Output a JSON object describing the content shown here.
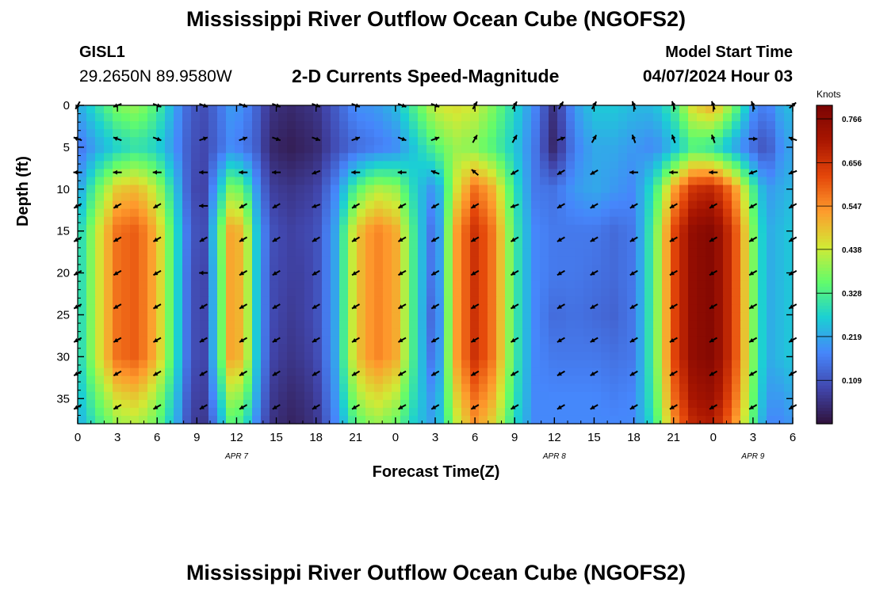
{
  "header": {
    "title": "Mississippi River Outflow Ocean Cube (NGOFS2)",
    "station_name": "GISL1",
    "station_coords": "29.2650N  89.9580W",
    "plot_title": "2-D Currents Speed-Magnitude",
    "model_start_label": "Model Start Time",
    "model_start_value": "04/07/2024 Hour 03"
  },
  "footer": {
    "title": "Mississippi River Outflow Ocean Cube (NGOFS2)"
  },
  "chart_data": {
    "type": "heatmap",
    "title": "2-D Currents Speed-Magnitude",
    "xlabel": "Forecast Time(Z)",
    "ylabel": "Depth (ft)",
    "x_unit": "hours since 04/07/2024 00Z",
    "xlim": [
      0,
      54
    ],
    "ylim": [
      0,
      38
    ],
    "y_inverted": true,
    "x_ticks": [
      0,
      3,
      6,
      9,
      12,
      15,
      18,
      21,
      24,
      27,
      30,
      33,
      36,
      39,
      42,
      45,
      48,
      51,
      54
    ],
    "x_tick_labels": [
      "0",
      "3",
      "6",
      "9",
      "12",
      "15",
      "18",
      "21",
      "0",
      "3",
      "6",
      "9",
      "12",
      "15",
      "18",
      "21",
      "0",
      "3",
      "6"
    ],
    "y_ticks": [
      0,
      5,
      10,
      15,
      20,
      25,
      30,
      35
    ],
    "y_tick_labels": [
      "0",
      "5",
      "10",
      "15",
      "20",
      "25",
      "30",
      "35"
    ],
    "date_labels": [
      {
        "x": 12,
        "label": "APR 7"
      },
      {
        "x": 36,
        "label": "APR 8"
      },
      {
        "x": 51,
        "label": "APR 9"
      }
    ],
    "colorbar": {
      "unit": "Knots",
      "range": [
        0,
        0.8
      ],
      "ticks": [
        0.109,
        0.219,
        0.328,
        0.438,
        0.547,
        0.656,
        0.766
      ],
      "tick_labels": [
        "0.109",
        "0.219",
        "0.328",
        "0.438",
        "0.547",
        "0.656",
        "0.766"
      ],
      "colors": [
        "#30123b",
        "#4146ac",
        "#4686fb",
        "#1bcfd4",
        "#62fc6b",
        "#d2e935",
        "#fe9b2d",
        "#e4460a",
        "#a91601",
        "#7a0403"
      ]
    },
    "speed_field": {
      "x": [
        0,
        1.5,
        3,
        4.5,
        6,
        7.5,
        8.5,
        9.5,
        10.5,
        11.5,
        12.5,
        13.5,
        14.5,
        16,
        17,
        18,
        19.5,
        21,
        22.5,
        24,
        25.5,
        27,
        28.5,
        30,
        31.5,
        33,
        34.5,
        36,
        37.5,
        39,
        40.5,
        42,
        43.5,
        45,
        46.5,
        48,
        49.5,
        51,
        52,
        53,
        54
      ],
      "depth": [
        0,
        5,
        10,
        15,
        20,
        25,
        30,
        35,
        38
      ],
      "values": [
        [
          0.22,
          0.3,
          0.38,
          0.4,
          0.33,
          0.2,
          0.12,
          0.1,
          0.14,
          0.2,
          0.19,
          0.13,
          0.06,
          0.04,
          0.05,
          0.06,
          0.12,
          0.19,
          0.2,
          0.24,
          0.34,
          0.44,
          0.46,
          0.44,
          0.37,
          0.28,
          0.18,
          0.05,
          0.2,
          0.26,
          0.26,
          0.24,
          0.24,
          0.32,
          0.47,
          0.52,
          0.38,
          0.2,
          0.16,
          0.22,
          0.25
        ],
        [
          0.15,
          0.22,
          0.27,
          0.3,
          0.27,
          0.18,
          0.11,
          0.09,
          0.13,
          0.18,
          0.16,
          0.12,
          0.04,
          0.02,
          0.03,
          0.04,
          0.1,
          0.14,
          0.16,
          0.18,
          0.26,
          0.34,
          0.4,
          0.38,
          0.33,
          0.26,
          0.16,
          0.03,
          0.17,
          0.22,
          0.22,
          0.2,
          0.18,
          0.24,
          0.33,
          0.3,
          0.22,
          0.14,
          0.1,
          0.18,
          0.22
        ],
        [
          0.2,
          0.36,
          0.48,
          0.5,
          0.42,
          0.24,
          0.1,
          0.08,
          0.22,
          0.38,
          0.36,
          0.2,
          0.08,
          0.06,
          0.07,
          0.08,
          0.18,
          0.34,
          0.42,
          0.4,
          0.27,
          0.18,
          0.44,
          0.58,
          0.5,
          0.3,
          0.16,
          0.15,
          0.2,
          0.22,
          0.2,
          0.18,
          0.3,
          0.52,
          0.66,
          0.68,
          0.56,
          0.33,
          0.2,
          0.22,
          0.24
        ],
        [
          0.26,
          0.44,
          0.58,
          0.6,
          0.5,
          0.28,
          0.12,
          0.09,
          0.3,
          0.52,
          0.5,
          0.26,
          0.11,
          0.08,
          0.09,
          0.1,
          0.22,
          0.48,
          0.56,
          0.52,
          0.3,
          0.12,
          0.52,
          0.66,
          0.56,
          0.32,
          0.18,
          0.16,
          0.16,
          0.16,
          0.14,
          0.16,
          0.34,
          0.62,
          0.76,
          0.78,
          0.64,
          0.38,
          0.22,
          0.24,
          0.26
        ],
        [
          0.26,
          0.44,
          0.58,
          0.6,
          0.5,
          0.28,
          0.11,
          0.08,
          0.28,
          0.52,
          0.5,
          0.26,
          0.1,
          0.08,
          0.08,
          0.1,
          0.22,
          0.48,
          0.56,
          0.52,
          0.3,
          0.12,
          0.52,
          0.66,
          0.56,
          0.32,
          0.18,
          0.16,
          0.16,
          0.15,
          0.14,
          0.16,
          0.34,
          0.62,
          0.76,
          0.78,
          0.64,
          0.38,
          0.22,
          0.24,
          0.26
        ],
        [
          0.26,
          0.44,
          0.58,
          0.6,
          0.5,
          0.28,
          0.11,
          0.08,
          0.28,
          0.52,
          0.5,
          0.26,
          0.1,
          0.07,
          0.08,
          0.1,
          0.22,
          0.48,
          0.56,
          0.52,
          0.3,
          0.1,
          0.52,
          0.66,
          0.56,
          0.32,
          0.18,
          0.14,
          0.15,
          0.14,
          0.13,
          0.16,
          0.34,
          0.62,
          0.76,
          0.78,
          0.64,
          0.38,
          0.22,
          0.24,
          0.26
        ],
        [
          0.26,
          0.44,
          0.58,
          0.6,
          0.5,
          0.28,
          0.11,
          0.08,
          0.28,
          0.52,
          0.5,
          0.26,
          0.09,
          0.06,
          0.07,
          0.09,
          0.22,
          0.48,
          0.56,
          0.52,
          0.3,
          0.12,
          0.52,
          0.66,
          0.56,
          0.32,
          0.18,
          0.16,
          0.16,
          0.16,
          0.15,
          0.16,
          0.34,
          0.62,
          0.76,
          0.78,
          0.64,
          0.38,
          0.22,
          0.24,
          0.26
        ],
        [
          0.24,
          0.36,
          0.46,
          0.48,
          0.4,
          0.24,
          0.09,
          0.07,
          0.22,
          0.4,
          0.38,
          0.22,
          0.07,
          0.04,
          0.05,
          0.07,
          0.2,
          0.4,
          0.46,
          0.42,
          0.28,
          0.18,
          0.46,
          0.58,
          0.5,
          0.3,
          0.18,
          0.18,
          0.18,
          0.18,
          0.17,
          0.18,
          0.32,
          0.58,
          0.72,
          0.74,
          0.6,
          0.36,
          0.2,
          0.2,
          0.22
        ],
        [
          0.22,
          0.32,
          0.4,
          0.42,
          0.36,
          0.22,
          0.08,
          0.06,
          0.18,
          0.34,
          0.32,
          0.18,
          0.06,
          0.03,
          0.04,
          0.06,
          0.18,
          0.34,
          0.4,
          0.36,
          0.26,
          0.2,
          0.42,
          0.54,
          0.46,
          0.28,
          0.18,
          0.18,
          0.18,
          0.18,
          0.18,
          0.18,
          0.3,
          0.54,
          0.68,
          0.7,
          0.56,
          0.34,
          0.18,
          0.18,
          0.2
        ]
      ]
    },
    "vector_field": {
      "x": [
        0,
        3,
        6,
        9.5,
        12.5,
        15,
        18,
        21,
        24.5,
        27,
        30,
        33,
        36.5,
        39,
        42,
        45,
        48,
        51,
        54
      ],
      "depth": [
        0,
        4,
        8,
        12,
        16,
        20,
        24,
        28,
        32,
        36
      ],
      "direction_deg": [
        [
          120,
          160,
          20,
          20,
          20,
          20,
          20,
          20,
          20,
          20,
          300,
          300,
          300,
          300,
          250,
          250,
          250,
          250,
          320
        ],
        [
          200,
          200,
          20,
          340,
          340,
          20,
          20,
          340,
          20,
          340,
          300,
          300,
          340,
          300,
          250,
          250,
          250,
          0,
          200
        ],
        [
          180,
          180,
          180,
          180,
          180,
          180,
          160,
          180,
          180,
          200,
          220,
          150,
          150,
          150,
          180,
          180,
          180,
          160,
          160
        ],
        [
          150,
          150,
          150,
          180,
          150,
          150,
          160,
          150,
          150,
          150,
          150,
          160,
          150,
          150,
          150,
          150,
          150,
          150,
          150
        ],
        [
          150,
          150,
          150,
          150,
          150,
          150,
          150,
          150,
          150,
          150,
          150,
          150,
          150,
          150,
          150,
          150,
          150,
          150,
          150
        ],
        [
          150,
          150,
          150,
          180,
          150,
          150,
          150,
          150,
          150,
          150,
          150,
          150,
          150,
          150,
          150,
          150,
          150,
          150,
          150
        ],
        [
          150,
          150,
          150,
          150,
          150,
          150,
          150,
          150,
          150,
          150,
          150,
          150,
          150,
          150,
          150,
          150,
          150,
          150,
          150
        ],
        [
          150,
          150,
          150,
          150,
          150,
          150,
          150,
          150,
          150,
          150,
          150,
          150,
          150,
          150,
          150,
          150,
          150,
          150,
          150
        ],
        [
          150,
          150,
          150,
          150,
          150,
          150,
          150,
          150,
          150,
          150,
          150,
          150,
          150,
          150,
          150,
          150,
          150,
          150,
          150
        ],
        [
          150,
          150,
          150,
          150,
          150,
          150,
          150,
          150,
          150,
          150,
          150,
          150,
          150,
          150,
          150,
          150,
          150,
          150,
          150
        ]
      ]
    }
  }
}
